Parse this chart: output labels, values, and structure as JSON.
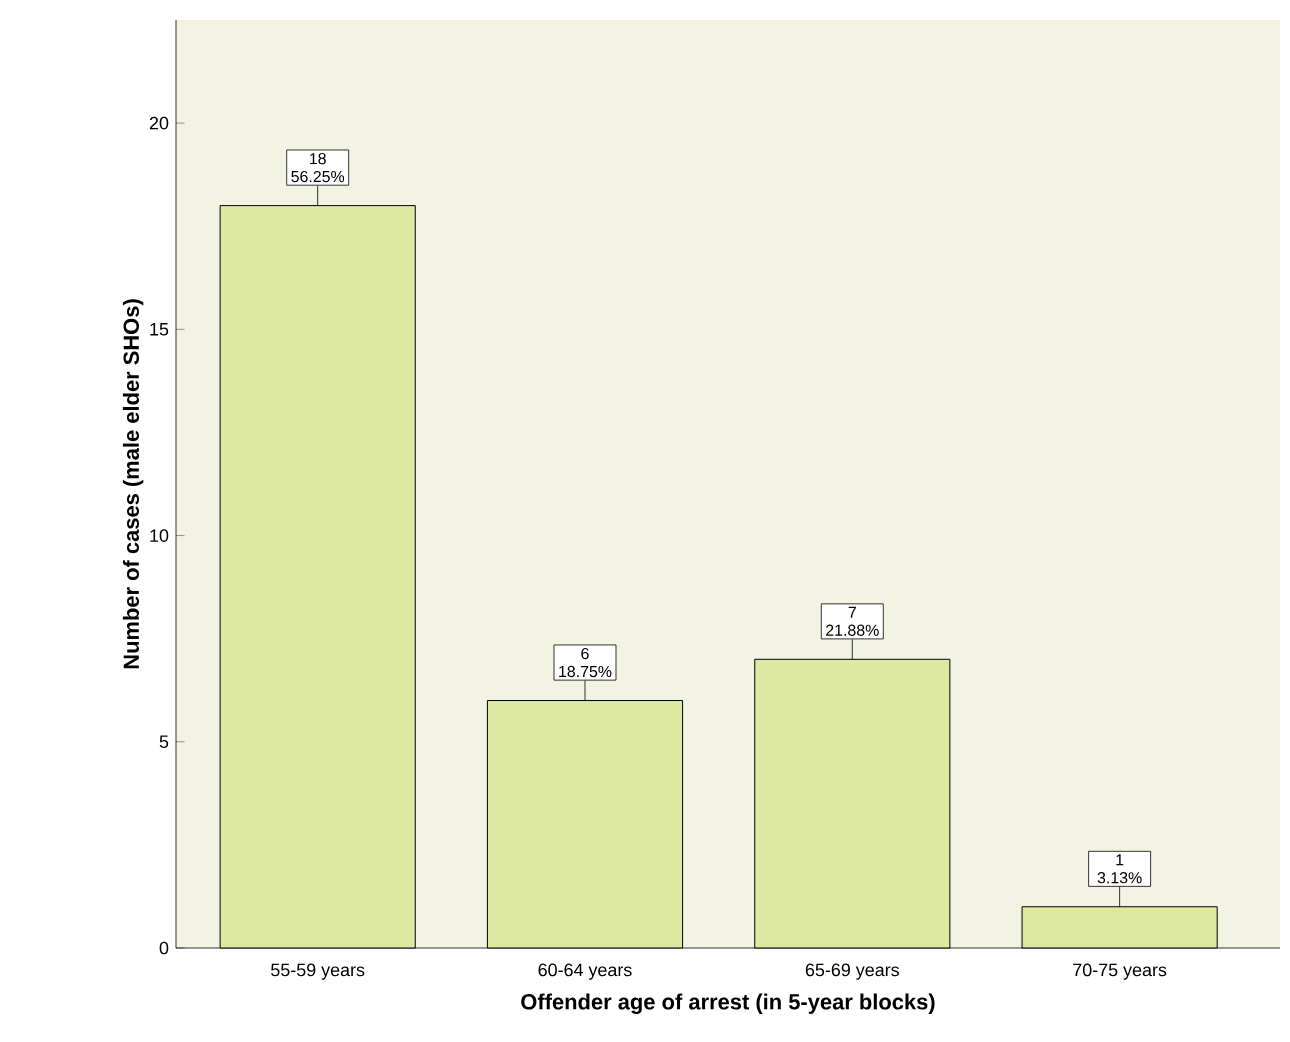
{
  "chart_data": {
    "type": "bar",
    "xlabel": "Offender age of arrest (in 5-year blocks)",
    "ylabel": "Number of cases (male elder SHOs)",
    "categories": [
      "55-59 years",
      "60-64 years",
      "65-69 years",
      "70-75 years"
    ],
    "values": [
      18,
      6,
      7,
      1
    ],
    "color": "#dde8a0",
    "value_labels": [
      "18 56.25%",
      "6 18.75%",
      "7 21.88%",
      "1 3.13%"
    ],
    "ylim": [
      0,
      22.5
    ],
    "yticks": [
      0,
      5,
      10,
      15,
      20
    ],
    "grid": false
  }
}
